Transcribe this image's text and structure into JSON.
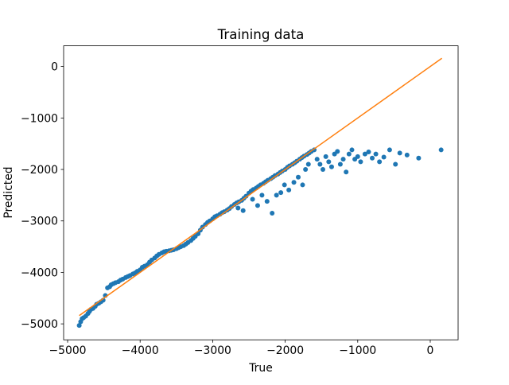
{
  "chart_data": {
    "type": "scatter",
    "title": "Training data",
    "x_label": "True",
    "y_label": "Predicted",
    "xlim": [
      -5055,
      384
    ],
    "ylim": [
      -5310,
      402
    ],
    "xticks": [
      {
        "value": -5000,
        "label": "−5000"
      },
      {
        "value": -4000,
        "label": "−4000"
      },
      {
        "value": -3000,
        "label": "−3000"
      },
      {
        "value": -2000,
        "label": "−2000"
      },
      {
        "value": -1000,
        "label": "−1000"
      },
      0
    ],
    "yticks": [
      {
        "value": -5000,
        "label": "−5000"
      },
      {
        "value": -4000,
        "label": "−4000"
      },
      {
        "value": -3000,
        "label": "−3000"
      },
      {
        "value": -2000,
        "label": "−2000"
      },
      {
        "value": -1000,
        "label": "−1000"
      },
      0
    ],
    "grid": false,
    "series": [
      {
        "color": "#1f77b4",
        "marker": "dot",
        "x": [
          -4840,
          -4820,
          -4800,
          -4780,
          -4750,
          -4720,
          -4700,
          -4680,
          -4650,
          -4620,
          -4600,
          -4570,
          -4540,
          -4510,
          -4480,
          -4450,
          -4420,
          -4400,
          -4370,
          -4340,
          -4300,
          -4270,
          -4240,
          -4200,
          -4170,
          -4140,
          -4100,
          -4070,
          -4040,
          -4000,
          -3970,
          -3940,
          -3900,
          -3870,
          -3840,
          -3800,
          -3770,
          -3740,
          -3700,
          -3670,
          -3640,
          -3600,
          -3570,
          -3540,
          -3500,
          -3470,
          -3440,
          -3400,
          -3370,
          -3340,
          -3300,
          -3270,
          -3240,
          -3200,
          -3170,
          -3140,
          -3100,
          -3070,
          -3040,
          -3000,
          -2970,
          -2940,
          -2900,
          -2870,
          -2840,
          -2800,
          -2770,
          -2740,
          -2700,
          -2670,
          -2640,
          -2600,
          -2570,
          -2540,
          -2500,
          -2470,
          -2440,
          -2400,
          -2370,
          -2340,
          -2300,
          -2270,
          -2240,
          -2200,
          -2170,
          -2140,
          -2100,
          -2070,
          -2040,
          -2000,
          -1970,
          -1940,
          -1900,
          -1870,
          -1840,
          -1800,
          -1770,
          -1740,
          -1700,
          -1670,
          -1640,
          -1600,
          -2650,
          -2580,
          -2450,
          -2380,
          -2320,
          -2250,
          -2180,
          -2120,
          -2060,
          -2010,
          -1950,
          -1880,
          -1820,
          -1760,
          -1720,
          -1680,
          -1560,
          -1520,
          -1480,
          -1440,
          -1400,
          -1360,
          -1320,
          -1280,
          -1240,
          -1200,
          -1160,
          -1120,
          -1080,
          -1040,
          -1000,
          -960,
          -900,
          -850,
          -800,
          -750,
          -700,
          -640,
          -560,
          -480,
          -420,
          -320,
          -160,
          150
        ],
        "values": [
          -5030,
          -4960,
          -4900,
          -4880,
          -4850,
          -4800,
          -4760,
          -4720,
          -4700,
          -4660,
          -4620,
          -4600,
          -4570,
          -4540,
          -4450,
          -4300,
          -4280,
          -4240,
          -4220,
          -4200,
          -4180,
          -4150,
          -4130,
          -4100,
          -4080,
          -4060,
          -4030,
          -4010,
          -3980,
          -3950,
          -3900,
          -3880,
          -3850,
          -3800,
          -3760,
          -3720,
          -3680,
          -3650,
          -3620,
          -3600,
          -3590,
          -3580,
          -3570,
          -3560,
          -3540,
          -3520,
          -3500,
          -3480,
          -3450,
          -3420,
          -3380,
          -3340,
          -3300,
          -3250,
          -3180,
          -3120,
          -3070,
          -3030,
          -3000,
          -2960,
          -2920,
          -2900,
          -2870,
          -2840,
          -2820,
          -2790,
          -2760,
          -2720,
          -2680,
          -2650,
          -2630,
          -2600,
          -2560,
          -2520,
          -2460,
          -2420,
          -2390,
          -2360,
          -2330,
          -2300,
          -2270,
          -2240,
          -2210,
          -2180,
          -2150,
          -2120,
          -2090,
          -2060,
          -2030,
          -2000,
          -1960,
          -1930,
          -1900,
          -1870,
          -1840,
          -1800,
          -1770,
          -1740,
          -1710,
          -1680,
          -1650,
          -1620,
          -2750,
          -2800,
          -2580,
          -2700,
          -2500,
          -2620,
          -2850,
          -2500,
          -2450,
          -2300,
          -2400,
          -2250,
          -2150,
          -2300,
          -2000,
          -1900,
          -1800,
          -1900,
          -2000,
          -1750,
          -1850,
          -1950,
          -1700,
          -1650,
          -1900,
          -1800,
          -2050,
          -1700,
          -1620,
          -1800,
          -1750,
          -1850,
          -1700,
          -1660,
          -1780,
          -1700,
          -1850,
          -1760,
          -1620,
          -1900,
          -1680,
          -1720,
          -1780,
          -1620
        ]
      },
      {
        "color": "#ff7f0e",
        "marker": "line",
        "x": [
          -4840,
          160
        ],
        "values": [
          -4840,
          160
        ]
      }
    ]
  }
}
